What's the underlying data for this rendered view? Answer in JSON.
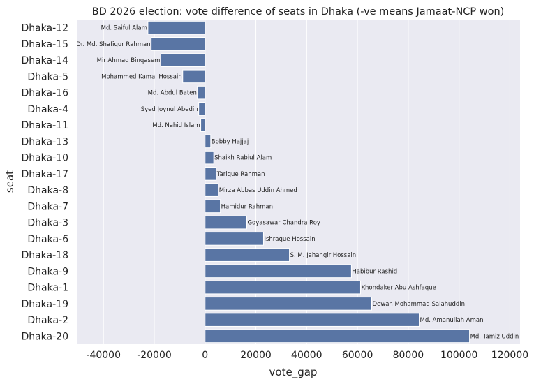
{
  "chart_data": {
    "type": "bar",
    "orientation": "horizontal",
    "title": "BD 2026 election: vote difference of seats in Dhaka (-ve means Jamaat-NCP won)",
    "xlabel": "vote_gap",
    "ylabel": "seat",
    "xlim": [
      -50500,
      124000
    ],
    "xticks": [
      -40000,
      -20000,
      0,
      20000,
      40000,
      60000,
      80000,
      100000,
      120000
    ],
    "grid": true,
    "bar_color": "#5975a4",
    "background": "#eaeaf2",
    "categories": [
      "Dhaka-12",
      "Dhaka-15",
      "Dhaka-14",
      "Dhaka-5",
      "Dhaka-16",
      "Dhaka-4",
      "Dhaka-11",
      "Dhaka-13",
      "Dhaka-10",
      "Dhaka-17",
      "Dhaka-8",
      "Dhaka-7",
      "Dhaka-3",
      "Dhaka-6",
      "Dhaka-18",
      "Dhaka-9",
      "Dhaka-1",
      "Dhaka-19",
      "Dhaka-2",
      "Dhaka-20"
    ],
    "values": [
      -22500,
      -21200,
      -17400,
      -8800,
      -3000,
      -2500,
      -1700,
      2200,
      3400,
      4400,
      5200,
      6000,
      16400,
      23000,
      33200,
      57600,
      61200,
      65600,
      84300,
      104100
    ],
    "labels": [
      "Md. Saiful Alam",
      "Dr. Md. Shafiqur Rahman",
      "Mir Ahmad Binqasem",
      "Mohammed Kamal Hossain",
      "Md. Abdul Baten",
      "Syed Joynul Abedin",
      "Md. Nahid Islam",
      "Bobby Hajjaj",
      "Shaikh Rabiul Alam",
      "Tarique Rahman",
      "Mirza Abbas Uddin Ahmed",
      "Hamidur Rahman",
      "Goyasawar Chandra Roy",
      "Ishraque Hossain",
      "S. M. Jahangir Hossain",
      "Habibur Rashid",
      "Khondaker Abu Ashfaque",
      "Dewan Mohammad Salahuddin",
      "Md. Amanullah Aman",
      "Md. Tamiz Uddin"
    ]
  }
}
